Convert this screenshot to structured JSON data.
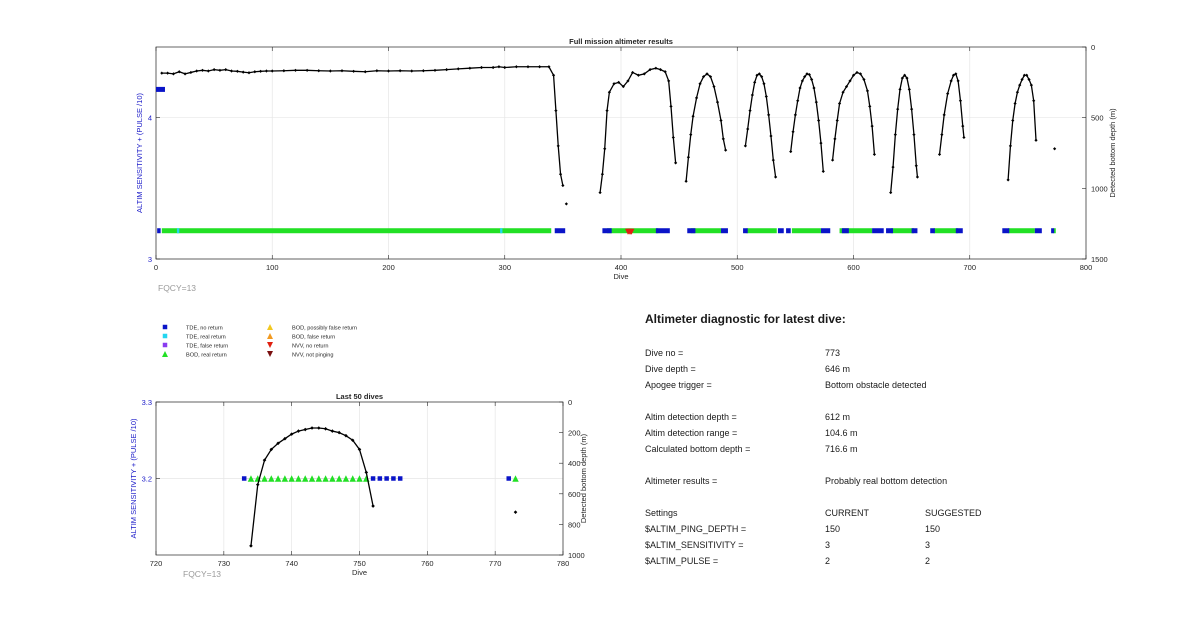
{
  "colors": {
    "tde_no_return": "#0a14c8",
    "tde_real_return": "#23d6f0",
    "tde_false_return": "#8a3cf0",
    "bod_real_return": "#22e025",
    "bod_possibly_false": "#f2c820",
    "bod_false_return": "#f29a20",
    "nvv_no_return": "#e02010",
    "nvv_not_pinging": "#7a1010",
    "depth_line": "#000000",
    "axis_left": "#1a1ac8"
  },
  "legend": {
    "items": [
      {
        "label": "TDE, no return",
        "marker": "square",
        "color": "#0a14c8"
      },
      {
        "label": "TDE, real return",
        "marker": "square",
        "color": "#23d6f0"
      },
      {
        "label": "TDE, false return",
        "marker": "square",
        "color": "#8a3cf0"
      },
      {
        "label": "BOD, real return",
        "marker": "triangle-up",
        "color": "#22e025"
      },
      {
        "label": "BOD, possibly false return",
        "marker": "triangle-up",
        "color": "#f2c820"
      },
      {
        "label": "BOD, false return",
        "marker": "triangle-up",
        "color": "#f29a20"
      },
      {
        "label": "NVV, no return",
        "marker": "triangle-down",
        "color": "#e02010"
      },
      {
        "label": "NVV, not pinging",
        "marker": "triangle-down",
        "color": "#7a1010"
      }
    ]
  },
  "chart_data": [
    {
      "type": "line",
      "title": "Full mission altimeter results",
      "xlabel": "Dive",
      "ylabel_left": "ALTIM SENSITIVITY + (PULSE /10)",
      "ylabel_right": "Detected bottom depth (m)",
      "annotation": "FQCY=13",
      "xlim": [
        0,
        800
      ],
      "xticks": [
        0,
        100,
        200,
        300,
        400,
        500,
        600,
        700,
        800
      ],
      "ylim_left": [
        3,
        4.5
      ],
      "yticks_left": [
        3,
        4
      ],
      "ylim_right": [
        0,
        1500
      ],
      "yticks_right": [
        0,
        500,
        1000,
        1500
      ],
      "right_axis_reversed": true,
      "grid": true,
      "sensitivity_marker": {
        "x_range": [
          0,
          6
        ],
        "y": 4.2,
        "color": "#0a14c8"
      },
      "tde_no_return_ranges": [
        [
          1,
          4
        ],
        [
          343,
          352
        ],
        [
          384,
          392
        ],
        [
          430,
          442
        ],
        [
          457,
          464
        ],
        [
          486,
          492
        ],
        [
          505,
          509
        ],
        [
          535,
          540
        ],
        [
          542,
          546
        ],
        [
          572,
          580
        ],
        [
          590,
          596
        ],
        [
          616,
          626
        ],
        [
          628,
          634
        ],
        [
          650,
          655
        ],
        [
          666,
          670
        ],
        [
          688,
          694
        ],
        [
          728,
          734
        ],
        [
          756,
          762
        ],
        [
          770,
          771
        ]
      ],
      "bod_real_return_ranges": [
        [
          5,
          340
        ],
        [
          388,
          432
        ],
        [
          460,
          486
        ],
        [
          508,
          534
        ],
        [
          547,
          572
        ],
        [
          588,
          616
        ],
        [
          632,
          652
        ],
        [
          669,
          690
        ],
        [
          733,
          756
        ],
        [
          772,
          774
        ]
      ],
      "tde_real_return_ranges": [
        [
          18,
          20
        ],
        [
          296,
          298
        ]
      ],
      "nvv_no_return_points": [
        406,
        407,
        408,
        409
      ],
      "detected_bottom_depth_segments": [
        {
          "x": [
            5,
            10,
            15,
            20,
            25,
            30,
            35,
            40,
            45,
            50,
            55,
            60,
            65,
            70,
            75,
            80,
            85,
            90,
            95,
            100,
            110,
            120,
            130,
            140,
            150,
            160,
            170,
            180,
            190,
            200,
            210,
            220,
            230,
            240,
            250,
            260,
            270,
            280,
            290,
            295,
            300,
            310,
            320,
            330,
            338,
            342,
            344,
            346,
            348,
            350
          ],
          "y": [
            185,
            185,
            190,
            175,
            190,
            180,
            170,
            165,
            170,
            160,
            165,
            160,
            170,
            172,
            178,
            182,
            175,
            172,
            170,
            170,
            168,
            165,
            165,
            168,
            170,
            168,
            172,
            175,
            168,
            170,
            168,
            170,
            168,
            165,
            160,
            155,
            150,
            145,
            145,
            140,
            145,
            140,
            140,
            140,
            140,
            200,
            450,
            700,
            900,
            980
          ]
        },
        {
          "x": [
            353
          ],
          "y": [
            1110
          ]
        },
        {
          "x": [
            382,
            384,
            386,
            388,
            390,
            394,
            398,
            402,
            406,
            410,
            415,
            420,
            425,
            430,
            434,
            438,
            441,
            443,
            445,
            447
          ],
          "y": [
            1030,
            900,
            720,
            450,
            320,
            260,
            250,
            280,
            240,
            180,
            200,
            190,
            160,
            150,
            160,
            175,
            240,
            420,
            640,
            820
          ]
        },
        {
          "x": [
            456,
            458,
            460,
            462,
            465,
            468,
            471,
            474,
            477,
            480,
            483,
            486,
            488,
            490
          ],
          "y": [
            950,
            780,
            620,
            490,
            360,
            260,
            210,
            190,
            210,
            280,
            390,
            520,
            650,
            730
          ]
        },
        {
          "x": [
            507,
            509,
            511,
            513,
            515,
            517,
            519,
            521,
            523,
            525,
            527,
            529,
            531,
            533
          ],
          "y": [
            700,
            580,
            450,
            340,
            250,
            200,
            190,
            210,
            260,
            350,
            480,
            630,
            800,
            920
          ]
        },
        {
          "x": [
            546,
            548,
            550,
            552,
            554,
            556,
            558,
            560,
            562,
            564,
            566,
            568,
            570,
            572,
            574
          ],
          "y": [
            740,
            600,
            480,
            380,
            290,
            240,
            210,
            190,
            195,
            230,
            290,
            390,
            520,
            680,
            880
          ]
        },
        {
          "x": [
            582,
            584,
            586,
            588,
            591,
            594,
            597,
            600,
            603,
            606,
            609,
            612,
            614,
            616,
            618
          ],
          "y": [
            800,
            650,
            520,
            400,
            320,
            280,
            240,
            200,
            180,
            190,
            230,
            310,
            420,
            560,
            760
          ]
        },
        {
          "x": [
            632,
            634,
            636,
            638,
            640,
            642,
            644,
            646,
            648,
            650,
            652,
            654,
            655
          ],
          "y": [
            1030,
            850,
            620,
            440,
            300,
            220,
            200,
            220,
            300,
            440,
            620,
            840,
            920
          ]
        },
        {
          "x": [
            674,
            676,
            678,
            681,
            684,
            686,
            688,
            690,
            692,
            694,
            695
          ],
          "y": [
            760,
            620,
            480,
            330,
            240,
            200,
            190,
            240,
            380,
            560,
            640
          ]
        },
        {
          "x": [
            733,
            735,
            737,
            739,
            741,
            743,
            745,
            747,
            749,
            751,
            753,
            755,
            757
          ],
          "y": [
            940,
            700,
            520,
            400,
            320,
            270,
            230,
            200,
            200,
            230,
            270,
            380,
            660
          ]
        },
        {
          "x": [
            773
          ],
          "y": [
            720
          ]
        }
      ]
    },
    {
      "type": "line",
      "title": "Last 50 dives",
      "xlabel": "Dive",
      "ylabel_left": "ALTIM SENSITIVITY + (PULSE /10)",
      "ylabel_right": "Detected bottom depth (m)",
      "annotation": "FQCY=13",
      "xlim": [
        720,
        780
      ],
      "xticks": [
        720,
        730,
        740,
        750,
        760,
        770,
        780
      ],
      "ylim_left": [
        3.1,
        3.3
      ],
      "yticks_left": [
        3.2,
        3.3
      ],
      "ylim_right": [
        0,
        1000
      ],
      "yticks_right": [
        0,
        200,
        400,
        600,
        800,
        1000
      ],
      "right_axis_reversed": true,
      "grid": true,
      "tde_no_return_points": [
        733,
        752,
        753,
        754,
        755,
        756,
        772
      ],
      "bod_real_return_points": [
        734,
        735,
        736,
        737,
        738,
        739,
        740,
        741,
        742,
        743,
        744,
        745,
        746,
        747,
        748,
        749,
        750,
        751,
        773
      ],
      "detected_bottom_depth_segments": [
        {
          "x": [
            734,
            735,
            736,
            737,
            738,
            739,
            740,
            741,
            742,
            743,
            744,
            745,
            746,
            747,
            748,
            749,
            750,
            751,
            752
          ],
          "y": [
            940,
            540,
            380,
            310,
            270,
            240,
            210,
            190,
            180,
            170,
            170,
            175,
            190,
            200,
            220,
            250,
            310,
            460,
            680
          ]
        },
        {
          "x": [
            773
          ],
          "y": [
            720
          ]
        }
      ]
    }
  ],
  "diagnostic": {
    "title": "Altimeter diagnostic for latest dive:",
    "dive_no_label": "Dive no =",
    "dive_no_value": "773",
    "dive_depth_label": "Dive depth =",
    "dive_depth_value": "646 m",
    "apogee_label": "Apogee trigger =",
    "apogee_value": "Bottom obstacle detected",
    "det_depth_label": "Altim detection depth =",
    "det_depth_value": "612 m",
    "det_range_label": "Altim detection range =",
    "det_range_value": "104.6 m",
    "calc_depth_label": "Calculated bottom depth =",
    "calc_depth_value": "716.6 m",
    "results_label": "Altimeter results =",
    "results_value": "Probably real bottom detection",
    "settings_label": "Settings",
    "current_label": "CURRENT",
    "suggested_label": "SUGGESTED",
    "ping_label": "$ALTIM_PING_DEPTH =",
    "ping_current": "150",
    "ping_suggested": "150",
    "sens_label": "$ALTIM_SENSITIVITY =",
    "sens_current": "3",
    "sens_suggested": "3",
    "pulse_label": "$ALTIM_PULSE =",
    "pulse_current": "2",
    "pulse_suggested": "2"
  }
}
